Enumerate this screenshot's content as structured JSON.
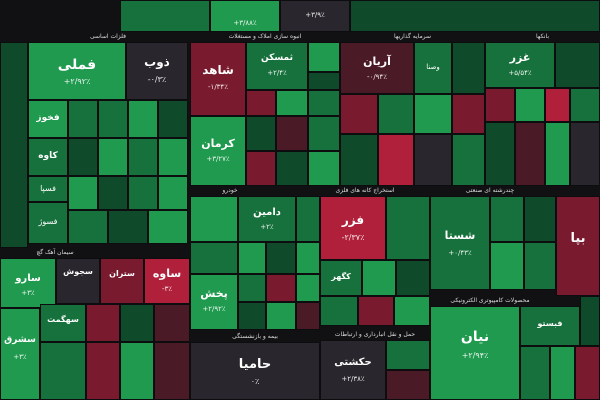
{
  "sectors": [
    {
      "key": "s1",
      "label": "فلزات اساسی"
    },
    {
      "key": "s2",
      "label": "انبوه سازی املاک و مستغلات"
    },
    {
      "key": "s3",
      "label": "سرمایه گذاریها"
    },
    {
      "key": "s4",
      "label": "بانکها"
    },
    {
      "key": "s5",
      "label": "خودرو"
    },
    {
      "key": "s6",
      "label": "استخراج کانه های فلزی"
    },
    {
      "key": "s7",
      "label": "چندرشته ای صنعتی"
    },
    {
      "key": "s8",
      "label": "سیمان آهک گچ"
    },
    {
      "key": "s9",
      "label": "محصولات کامپیوتری الکترونیکی"
    },
    {
      "key": "s10",
      "label": "بیمه و بازنشستگی"
    },
    {
      "key": "s11",
      "label": "حمل و نقل انبارداری و ارتباطات"
    }
  ],
  "tiles": [
    {
      "key": "t1",
      "name": "",
      "pct": "+۳/۸۸٪"
    },
    {
      "key": "t2",
      "name": "",
      "pct": "+۳/۹٪"
    },
    {
      "key": "t3",
      "name": "فملی",
      "pct": "+۲/۹۲٪"
    },
    {
      "key": "t4",
      "name": "ذوب",
      "pct": "-۰/۳٪"
    },
    {
      "key": "t5",
      "name": "شاهد",
      "pct": "-۱/۳۴٪"
    },
    {
      "key": "t6",
      "name": "ثمسکن",
      "pct": "+۲/۴٪"
    },
    {
      "key": "t7",
      "name": "آریان",
      "pct": "-۰/۹۴٪"
    },
    {
      "key": "t8",
      "name": "وصنا",
      "pct": ""
    },
    {
      "key": "t9",
      "name": "غزر",
      "pct": "+۵/۵۴٪"
    },
    {
      "key": "t10",
      "name": "کرمان",
      "pct": "+۳/۲۷٪"
    },
    {
      "key": "t11",
      "name": "فخوز",
      "pct": ""
    },
    {
      "key": "t12",
      "name": "کاوه",
      "pct": ""
    },
    {
      "key": "t13",
      "name": "فسپا",
      "pct": ""
    },
    {
      "key": "t14",
      "name": "فسوژ",
      "pct": ""
    },
    {
      "key": "t15",
      "name": "دامین",
      "pct": "+۲٪"
    },
    {
      "key": "t16",
      "name": "فزر",
      "pct": "-۲/۳۷٪"
    },
    {
      "key": "t17",
      "name": "شستا",
      "pct": "+۰/۴۳٪"
    },
    {
      "key": "t18",
      "name": "سارو",
      "pct": "+۳٪"
    },
    {
      "key": "t19",
      "name": "سجوش",
      "pct": ""
    },
    {
      "key": "t20",
      "name": "ستران",
      "pct": ""
    },
    {
      "key": "t21",
      "name": "ساوه",
      "pct": "-۳٪"
    },
    {
      "key": "t22",
      "name": "سهگمت",
      "pct": ""
    },
    {
      "key": "t23",
      "name": "پخش",
      "pct": "+۲/۹۲٪"
    },
    {
      "key": "t24",
      "name": "کگهر",
      "pct": ""
    },
    {
      "key": "t25",
      "name": "سشرق",
      "pct": "+۳٪"
    },
    {
      "key": "t26",
      "name": "حامیا",
      "pct": "۰٪"
    },
    {
      "key": "t27",
      "name": "حکشتی",
      "pct": "+۲/۳۸٪"
    },
    {
      "key": "t28",
      "name": "نیان",
      "pct": "+۲/۹۴٪"
    },
    {
      "key": "t29",
      "name": "فبستو",
      "pct": ""
    },
    {
      "key": "t30",
      "name": "بپا",
      "pct": ""
    }
  ]
}
